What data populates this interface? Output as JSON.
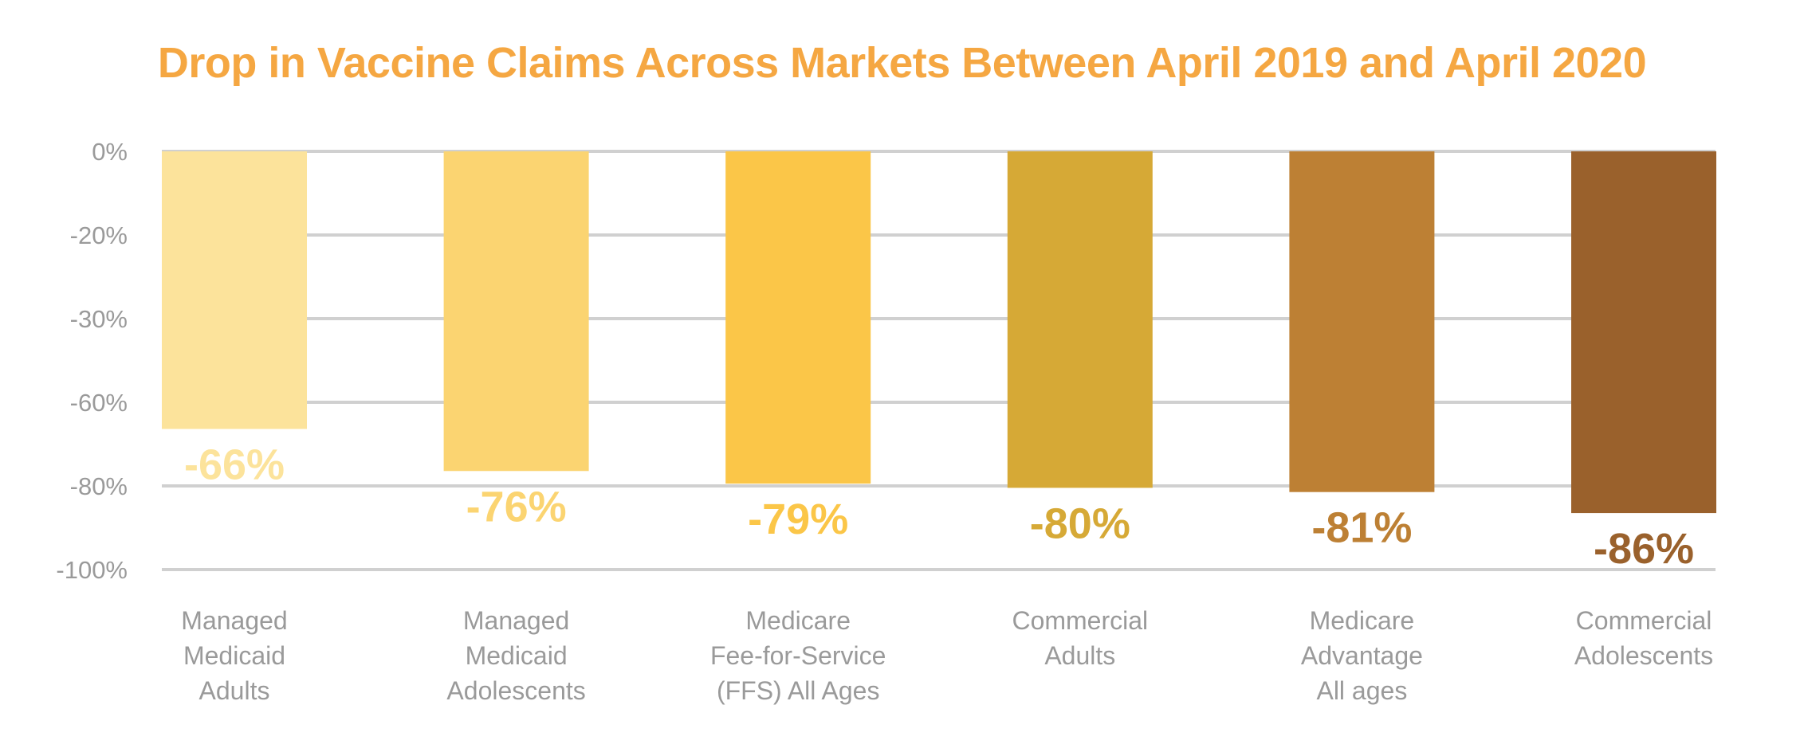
{
  "chart_data": {
    "type": "bar",
    "title": "Drop in Vaccine Claims Across Markets Between April 2019 and April 2020",
    "xlabel": "",
    "ylabel": "",
    "y_tick_labels": [
      "0%",
      "-20%",
      "-30%",
      "-60%",
      "-80%",
      "-100%"
    ],
    "categories": [
      [
        "Managed",
        "Medicaid",
        "Adults"
      ],
      [
        "Managed",
        "Medicaid",
        "Adolescents"
      ],
      [
        "Medicare",
        "Fee-for-Service",
        "(FFS) All Ages"
      ],
      [
        "Commercial",
        "Adults"
      ],
      [
        "Medicare",
        "Advantage",
        "All ages"
      ],
      [
        "Commercial",
        "Adolescents"
      ]
    ],
    "values": [
      -66,
      -76,
      -79,
      -80,
      -81,
      -86
    ],
    "data_labels": [
      "-66%",
      "-76%",
      "-79%",
      "-80%",
      "-81%",
      "-86%"
    ],
    "bar_colors": [
      "#fce39b",
      "#fbd471",
      "#fbc648",
      "#d6a936",
      "#bd8034",
      "#9a612c"
    ],
    "title_color": "#f5a742",
    "grid": true,
    "legend": "none"
  }
}
